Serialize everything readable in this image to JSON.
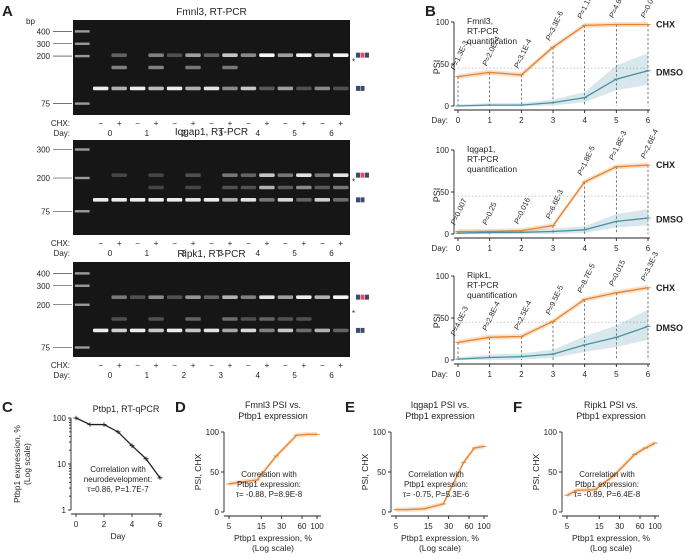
{
  "panel_letters": [
    "A",
    "B",
    "C",
    "D",
    "E",
    "F"
  ],
  "gel": {
    "bp_label": "bp",
    "cond_label": "CHX:",
    "day_label": "Day:",
    "minus": "−",
    "plus": "+",
    "days": [
      "0",
      "1",
      "2",
      "3",
      "4",
      "5",
      "6"
    ],
    "gels": [
      {
        "title": "Fmnl3, RT-PCR",
        "ladder": [
          "400",
          "300",
          "200",
          "75"
        ],
        "star": "*"
      },
      {
        "title": "Iqgap1, RT-PCR",
        "ladder": [
          "300",
          "200",
          "75"
        ],
        "star": "*"
      },
      {
        "title": "Ripk1, RT-PCR",
        "ladder": [
          "400",
          "300",
          "200",
          "75"
        ],
        "star": "*"
      }
    ]
  },
  "colors": {
    "chx": "#e6832f",
    "dmso": "#4a90a4",
    "dark": "#231f20",
    "ink": "#231f20"
  },
  "chart_data": [
    {
      "type": "line",
      "title": "Fmnl3, RT-PCR quantification",
      "title_lines": [
        "Fmnl3,",
        "RT-PCR",
        "quantification"
      ],
      "ylabel": "PSI",
      "xlabel": "Day:",
      "ylim": [
        0,
        100
      ],
      "yticks": [
        "0",
        "50",
        "100"
      ],
      "x": [
        0,
        1,
        2,
        3,
        4,
        5,
        6
      ],
      "series": [
        {
          "name": "CHX",
          "values": [
            35,
            40,
            37,
            70,
            96,
            97,
            97
          ]
        },
        {
          "name": "DMSO",
          "values": [
            0,
            1,
            1,
            4,
            10,
            32,
            42
          ]
        }
      ],
      "pvalues": [
        "1.3E-3",
        "2.0E-4",
        "3.1E-4",
        "3.3E-6",
        "1.1E-7",
        "4.6E-3",
        "0.044"
      ]
    },
    {
      "type": "line",
      "title": "Iqgap1, RT-PCR quantification",
      "title_lines": [
        "Iqgap1,",
        "RT-PCR",
        "quantification"
      ],
      "ylabel": "PSI",
      "xlabel": "Day:",
      "ylim": [
        0,
        100
      ],
      "yticks": [
        "0",
        "50",
        "100"
      ],
      "x": [
        0,
        1,
        2,
        3,
        4,
        5,
        6
      ],
      "series": [
        {
          "name": "CHX",
          "values": [
            3,
            3,
            4,
            10,
            62,
            80,
            82
          ]
        },
        {
          "name": "DMSO",
          "values": [
            1,
            2,
            2,
            3,
            5,
            15,
            19
          ]
        }
      ],
      "pvalues": [
        "0.007",
        "0.25",
        "0.016",
        "6.6E-3",
        "1.8E-5",
        "1.8E-3",
        "2.6E-4"
      ]
    },
    {
      "type": "line",
      "title": "Ripk1, RT-PCR quantification",
      "title_lines": [
        "Ripk1,",
        "RT-PCR",
        "quantification"
      ],
      "ylabel": "PSI",
      "xlabel": "Day:",
      "ylim": [
        0,
        100
      ],
      "yticks": [
        "0",
        "50",
        "100"
      ],
      "x": [
        0,
        1,
        2,
        3,
        4,
        5,
        6
      ],
      "series": [
        {
          "name": "CHX",
          "values": [
            21,
            27,
            28,
            46,
            72,
            80,
            86
          ]
        },
        {
          "name": "DMSO",
          "values": [
            1,
            3,
            4,
            7,
            18,
            27,
            40
          ]
        }
      ],
      "pvalues": [
        "4.0E-3",
        "2.8E-4",
        "2.5E-4",
        "9.5E-5",
        "8.7E-5",
        "0.015",
        "3.3E-3"
      ]
    },
    {
      "type": "line",
      "title": "Ptbp1, RT-qPCR",
      "ylabel_lines": [
        "Ptbp1 expression, %",
        "(Log scale)"
      ],
      "xlabel": "Day",
      "yticks": [
        "1",
        "10",
        "100"
      ],
      "xticks": [
        "0",
        "2",
        "4",
        "6"
      ],
      "x": [
        0,
        1,
        2,
        3,
        4,
        5,
        6
      ],
      "values": [
        100,
        72,
        72,
        50,
        25,
        13,
        5
      ],
      "annotation_lines": [
        "Correlation with",
        "neurodevelopment:",
        "τ=0.86, P=1.7E-7"
      ]
    },
    {
      "type": "line",
      "title": "Fmnl3 PSI vs. Ptbp1 expression",
      "title_lines": [
        "Fmnl3 PSI vs.",
        "Ptbp1 expression"
      ],
      "ylabel": "PSI, CHX",
      "xlabel_lines": [
        "Ptbp1 expression, %",
        "(Log scale)"
      ],
      "xticks": [
        "5",
        "15",
        "30",
        "60",
        "100"
      ],
      "yticks": [
        "0",
        "50",
        "100"
      ],
      "x": [
        100,
        72,
        50,
        25,
        13,
        7,
        5
      ],
      "values": [
        97,
        97,
        96,
        70,
        40,
        37,
        35
      ],
      "annotation_lines": [
        "Correlation with",
        "Ptbp1 expression:",
        "τ= -0.88, P=8.9E-8"
      ]
    },
    {
      "type": "line",
      "title": "Iqgap1 PSI vs. Ptbp1 expression",
      "title_lines": [
        "Iqgap1 PSI vs.",
        "Ptbp1 expression"
      ],
      "ylabel": "PSI, CHX",
      "xlabel_lines": [
        "Ptbp1 expression, %",
        "(Log scale)"
      ],
      "xticks": [
        "5",
        "15",
        "30",
        "60",
        "100"
      ],
      "yticks": [
        "0",
        "50",
        "100"
      ],
      "x": [
        100,
        72,
        50,
        25,
        13,
        7,
        5
      ],
      "values": [
        82,
        80,
        62,
        10,
        4,
        3,
        3
      ],
      "annotation_lines": [
        "Correlation with",
        "Ptbp1 expression:",
        "τ= -0.75, P=5.3E-6"
      ]
    },
    {
      "type": "line",
      "title": "Ripk1 PSI vs. Ptbp1 expression",
      "title_lines": [
        "Ripk1 PSI vs.",
        "Ptbp1 expression"
      ],
      "ylabel": "PSI, CHX",
      "xlabel_lines": [
        "Ptbp1 expression, %",
        "(Log scale)"
      ],
      "xticks": [
        "5",
        "15",
        "30",
        "60",
        "100"
      ],
      "yticks": [
        "0",
        "50",
        "100"
      ],
      "x": [
        100,
        72,
        50,
        25,
        13,
        7,
        5
      ],
      "values": [
        86,
        80,
        72,
        46,
        28,
        27,
        21
      ],
      "annotation_lines": [
        "Correlation with",
        "Ptbp1 expression:",
        "τ= -0.89, P=6.4E-8"
      ]
    }
  ]
}
